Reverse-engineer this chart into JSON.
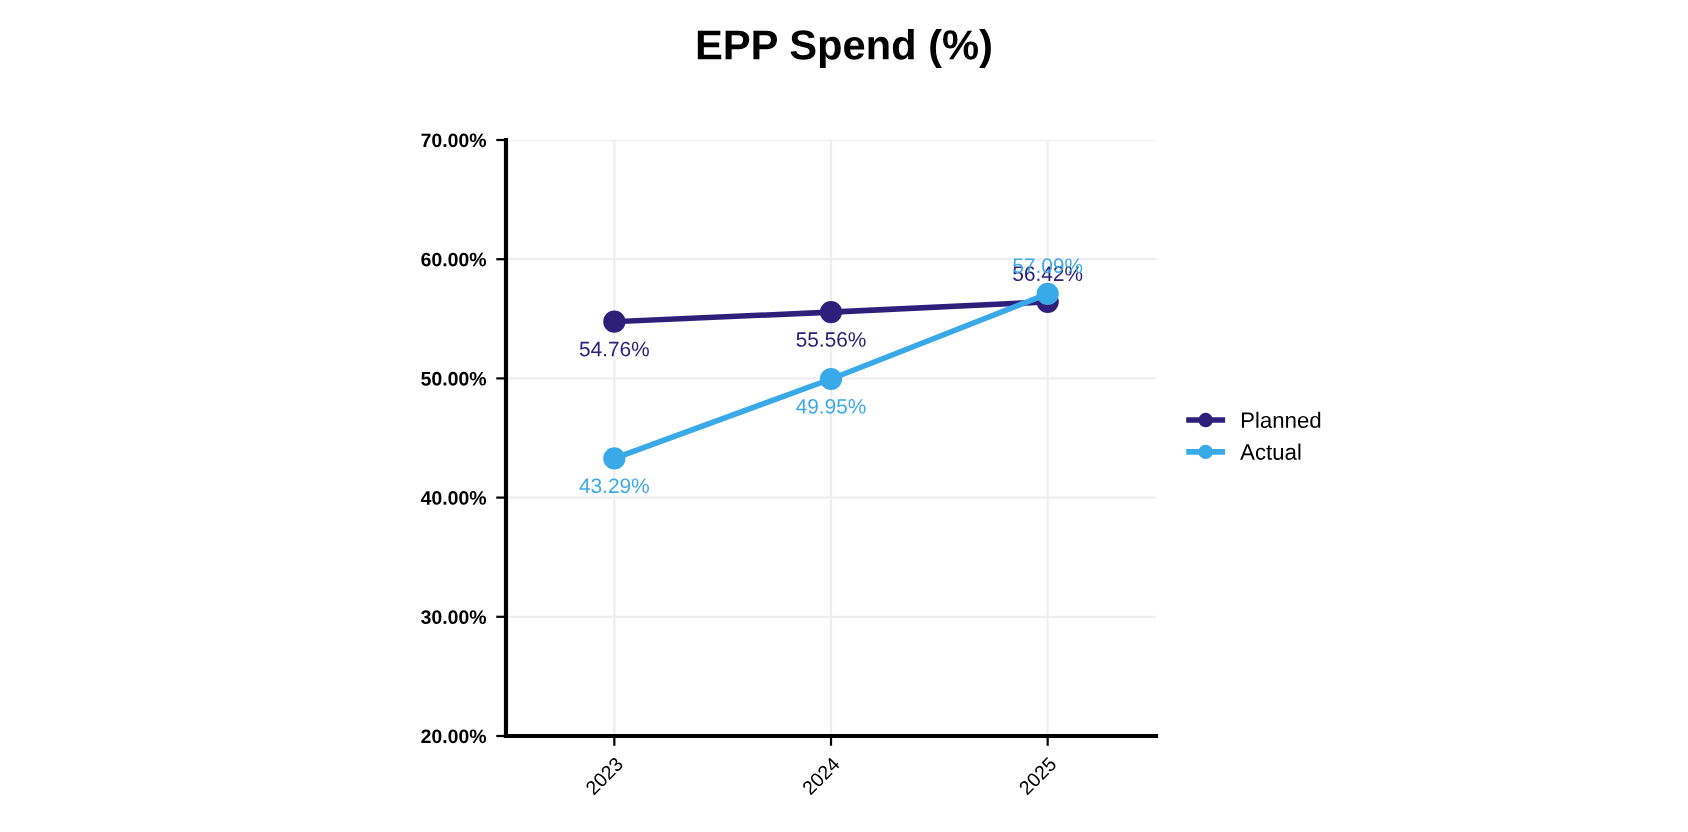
{
  "chart_data": {
    "type": "line",
    "title": "EPP Spend (%)",
    "categories": [
      "2023",
      "2024",
      "2025"
    ],
    "series": [
      {
        "name": "Planned",
        "color": "#2e1f7a",
        "values": [
          54.76,
          55.56,
          56.42
        ],
        "value_labels": [
          "54.76%",
          "55.56%",
          "56.42%"
        ]
      },
      {
        "name": "Actual",
        "color": "#3aa9e8",
        "values": [
          43.29,
          49.95,
          57.09
        ],
        "value_labels": [
          "43.29%",
          "49.95%",
          "57.09%"
        ]
      }
    ],
    "ylim": [
      20,
      70
    ],
    "yticks": [
      {
        "value": 20,
        "label": "20.00%"
      },
      {
        "value": 30,
        "label": "30.00%"
      },
      {
        "value": 40,
        "label": "40.00%"
      },
      {
        "value": 50,
        "label": "50.00%"
      },
      {
        "value": 60,
        "label": "60.00%"
      },
      {
        "value": 70,
        "label": "70.00%"
      }
    ],
    "grid": true,
    "legend": "right",
    "marker": "circle",
    "line_style": "solid"
  }
}
